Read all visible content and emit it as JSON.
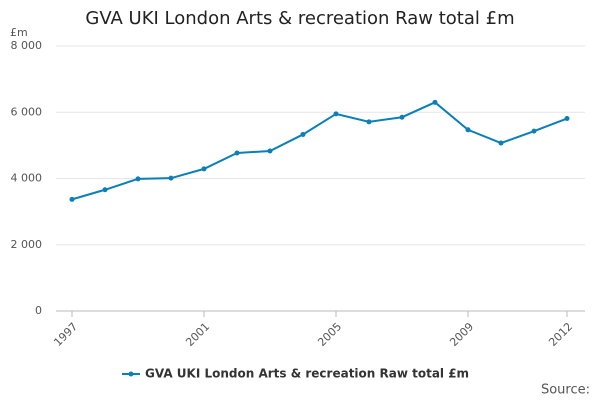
{
  "chart_data": {
    "type": "line",
    "title": "GVA UKI London Arts & recreation Raw total £m",
    "y_unit": "£m",
    "source": "Source:",
    "x": [
      1997,
      1998,
      1999,
      2000,
      2001,
      2002,
      2003,
      2004,
      2005,
      2006,
      2007,
      2008,
      2009,
      2010,
      2011,
      2012
    ],
    "series": [
      {
        "name": "GVA UKI London Arts & recreation Raw total £m",
        "color": "#0a7fb8",
        "values": [
          3370,
          3660,
          3990,
          4010,
          4290,
          4770,
          4830,
          5330,
          5950,
          5710,
          5850,
          6300,
          5470,
          5070,
          5430,
          5810
        ]
      }
    ],
    "xlim": [
      1997,
      2012
    ],
    "xticks": [
      1997,
      2001,
      2005,
      2009,
      2012
    ],
    "ylim": [
      0,
      8000
    ],
    "yticks": [
      0,
      {
        "value": 2000,
        "label": "2 000"
      },
      {
        "value": 4000,
        "label": "4 000"
      },
      {
        "value": 6000,
        "label": "6 000"
      },
      {
        "value": 8000,
        "label": "8 000"
      }
    ],
    "grid": true,
    "legend": "bottom"
  }
}
